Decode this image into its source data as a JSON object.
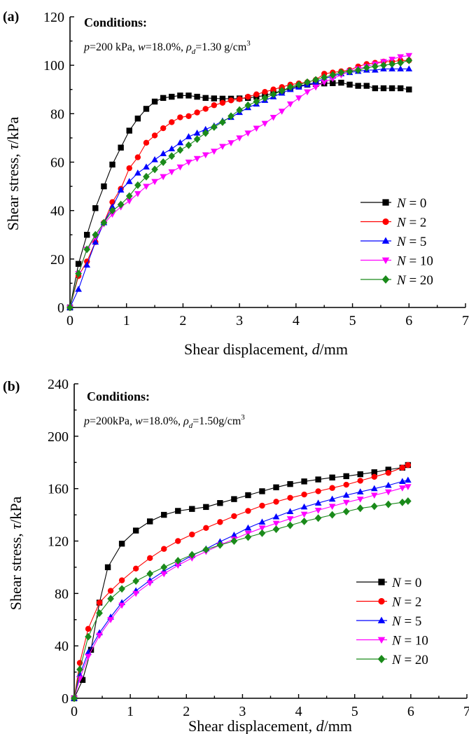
{
  "chart_data": [
    {
      "panel": "(a)",
      "type": "line",
      "xlabel": "Shear displacement, d/mm",
      "ylabel": "Shear stress, τ/kPa",
      "xlim": [
        0,
        7
      ],
      "ylim": [
        0,
        120
      ],
      "xticks": [
        0,
        1,
        2,
        3,
        4,
        5,
        6,
        7
      ],
      "yticks": [
        0,
        20,
        40,
        60,
        80,
        100,
        120
      ],
      "grid": false,
      "legend_position": "center-right",
      "annotation": {
        "title": "Conditions:",
        "line": "p=200 kPa, w=18.0%, ρd=1.30 g/cm3"
      },
      "series": [
        {
          "name": "N = 0",
          "label_var": "N",
          "label_rest": " = 0",
          "color": "#000000",
          "marker": "square",
          "x": [
            0,
            0.15,
            0.3,
            0.45,
            0.6,
            0.75,
            0.9,
            1.05,
            1.2,
            1.35,
            1.5,
            1.65,
            1.8,
            1.95,
            2.1,
            2.25,
            2.4,
            2.55,
            2.7,
            2.85,
            3.0,
            3.15,
            3.3,
            3.45,
            3.6,
            3.75,
            3.9,
            4.05,
            4.2,
            4.35,
            4.5,
            4.65,
            4.8,
            4.95,
            5.1,
            5.25,
            5.4,
            5.55,
            5.7,
            5.85,
            6.0
          ],
          "y": [
            0,
            18,
            30,
            41,
            50,
            59,
            66,
            73,
            78,
            82,
            85,
            86.5,
            87,
            87.5,
            87.5,
            87,
            86.5,
            86.3,
            86.2,
            86.2,
            86.3,
            86.5,
            87,
            87.5,
            88.5,
            89.5,
            90.5,
            91.5,
            92,
            92.3,
            92.5,
            92.6,
            92.8,
            92,
            91.5,
            91.5,
            90.5,
            90.5,
            90.5,
            90.5,
            90
          ]
        },
        {
          "name": "N = 2",
          "label_var": "N",
          "label_rest": " = 2",
          "color": "#ff0000",
          "marker": "circle",
          "x": [
            0,
            0.15,
            0.3,
            0.45,
            0.6,
            0.75,
            0.9,
            1.05,
            1.2,
            1.35,
            1.5,
            1.65,
            1.8,
            1.95,
            2.1,
            2.25,
            2.4,
            2.55,
            2.7,
            2.85,
            3.0,
            3.15,
            3.3,
            3.45,
            3.6,
            3.75,
            3.9,
            4.05,
            4.2,
            4.35,
            4.5,
            4.65,
            4.8,
            4.95,
            5.1,
            5.25,
            5.4,
            5.55,
            5.7,
            5.85,
            6.0
          ],
          "y": [
            0,
            13,
            19,
            27,
            35,
            43.5,
            49,
            57.5,
            62,
            68,
            71,
            74,
            76.5,
            78.5,
            79,
            80.5,
            82,
            83.5,
            84.5,
            85.5,
            86,
            87,
            88,
            89,
            90,
            91,
            92,
            92.5,
            93,
            94,
            96.5,
            97,
            97.5,
            98,
            99.5,
            100.5,
            101,
            101.5,
            101.5,
            102,
            102
          ]
        },
        {
          "name": "N = 5",
          "label_var": "N",
          "label_rest": " = 5",
          "color": "#0000ff",
          "marker": "triangle-up",
          "x": [
            0,
            0.15,
            0.3,
            0.45,
            0.6,
            0.75,
            0.9,
            1.05,
            1.2,
            1.35,
            1.5,
            1.65,
            1.8,
            1.95,
            2.1,
            2.25,
            2.4,
            2.55,
            2.7,
            2.85,
            3.0,
            3.15,
            3.3,
            3.45,
            3.6,
            3.75,
            3.9,
            4.05,
            4.2,
            4.35,
            4.5,
            4.65,
            4.8,
            4.95,
            5.1,
            5.25,
            5.4,
            5.55,
            5.7,
            5.85,
            6.0
          ],
          "y": [
            0,
            7.5,
            17.5,
            27,
            35,
            41.5,
            48.5,
            52,
            55.5,
            58,
            61,
            63.5,
            65.5,
            68,
            70.5,
            72,
            73.5,
            75,
            77,
            78.5,
            80.5,
            82.5,
            84,
            85.5,
            87,
            88.5,
            90,
            91,
            92,
            93,
            94.5,
            95.5,
            96.5,
            97,
            97.5,
            98,
            98,
            98.5,
            98.5,
            98.5,
            98.5
          ]
        },
        {
          "name": "N = 10",
          "label_var": "N",
          "label_rest": " = 10",
          "color": "#ff00ff",
          "marker": "triangle-down",
          "x": [
            0,
            0.15,
            0.3,
            0.45,
            0.6,
            0.75,
            0.9,
            1.05,
            1.2,
            1.35,
            1.5,
            1.65,
            1.8,
            1.95,
            2.1,
            2.25,
            2.4,
            2.55,
            2.7,
            2.85,
            3.0,
            3.15,
            3.3,
            3.45,
            3.6,
            3.75,
            3.9,
            4.05,
            4.2,
            4.35,
            4.5,
            4.65,
            4.8,
            4.95,
            5.1,
            5.25,
            5.4,
            5.55,
            5.7,
            5.85,
            6.0
          ],
          "y": [
            0,
            14,
            24,
            29,
            34.5,
            38.5,
            41.5,
            44,
            47,
            50,
            52,
            54,
            56,
            58,
            60,
            61.5,
            63,
            64.5,
            66.5,
            68,
            70,
            72,
            74,
            76,
            78.5,
            81,
            84,
            86.5,
            89,
            91,
            93,
            94.5,
            96,
            97.5,
            98.5,
            99.5,
            100.5,
            101.5,
            102.5,
            103.5,
            104
          ]
        },
        {
          "name": "N = 20",
          "label_var": "N",
          "label_rest": " = 20",
          "color": "#1a8a1a",
          "marker": "diamond",
          "x": [
            0,
            0.15,
            0.3,
            0.45,
            0.6,
            0.75,
            0.9,
            1.05,
            1.2,
            1.35,
            1.5,
            1.65,
            1.8,
            1.95,
            2.1,
            2.25,
            2.4,
            2.55,
            2.7,
            2.85,
            3.0,
            3.15,
            3.3,
            3.45,
            3.6,
            3.75,
            3.9,
            4.05,
            4.2,
            4.35,
            4.5,
            4.65,
            4.8,
            4.95,
            5.1,
            5.25,
            5.4,
            5.55,
            5.7,
            5.85,
            6.0
          ],
          "y": [
            0,
            14,
            24,
            30,
            35,
            40,
            42.5,
            46,
            50.5,
            54,
            57,
            60,
            62.5,
            65,
            67,
            69.5,
            72,
            74.5,
            76.5,
            79,
            81.5,
            83.5,
            85,
            86.5,
            88,
            89.5,
            91,
            92,
            93,
            94,
            95,
            96,
            97,
            97.5,
            98,
            99,
            99.5,
            100,
            100.5,
            101,
            102
          ]
        }
      ]
    },
    {
      "panel": "(b)",
      "type": "line",
      "xlabel": "Shear displacement, d/mm",
      "ylabel": "Shear stress, τ/kPa",
      "xlim": [
        0,
        7
      ],
      "ylim": [
        0,
        240
      ],
      "xticks": [
        0,
        1,
        2,
        3,
        4,
        5,
        6,
        7
      ],
      "yticks": [
        0,
        40,
        80,
        120,
        160,
        200,
        240
      ],
      "grid": false,
      "legend_position": "bottom-right",
      "annotation": {
        "title": "Conditions:",
        "line": "p=200kPa, w=18.0%, ρd=1.50g/cm3"
      },
      "series": [
        {
          "name": "N = 0",
          "label_var": "N",
          "label_rest": " = 0",
          "color": "#000000",
          "marker": "square",
          "x": [
            0,
            0.15,
            0.3,
            0.45,
            0.6,
            0.85,
            1.1,
            1.35,
            1.6,
            1.85,
            2.1,
            2.35,
            2.6,
            2.85,
            3.1,
            3.35,
            3.6,
            3.85,
            4.1,
            4.35,
            4.6,
            4.85,
            5.1,
            5.35,
            5.6,
            5.85,
            5.95
          ],
          "y": [
            0,
            14,
            37,
            73,
            100,
            118,
            128,
            135,
            140,
            143,
            144.5,
            146,
            149,
            152,
            155,
            158,
            161,
            163.5,
            165.5,
            167,
            168.5,
            169.5,
            171,
            172.5,
            174.5,
            176,
            178
          ]
        },
        {
          "name": "N = 2",
          "label_var": "N",
          "label_rest": " = 2",
          "color": "#ff0000",
          "marker": "circle",
          "x": [
            0,
            0.1,
            0.25,
            0.45,
            0.65,
            0.85,
            1.1,
            1.35,
            1.6,
            1.85,
            2.1,
            2.35,
            2.6,
            2.85,
            3.1,
            3.35,
            3.6,
            3.85,
            4.1,
            4.35,
            4.6,
            4.85,
            5.1,
            5.35,
            5.6,
            5.85,
            5.95
          ],
          "y": [
            0,
            27,
            53,
            73,
            82,
            90,
            99,
            107,
            114,
            120,
            125,
            130,
            134.5,
            139,
            143,
            147,
            150,
            153,
            155.5,
            158,
            160.5,
            163,
            166,
            169,
            172,
            176,
            178
          ]
        },
        {
          "name": "N = 5",
          "label_var": "N",
          "label_rest": " = 5",
          "color": "#0000ff",
          "marker": "triangle-up",
          "x": [
            0,
            0.1,
            0.25,
            0.45,
            0.65,
            0.85,
            1.1,
            1.35,
            1.6,
            1.85,
            2.1,
            2.35,
            2.6,
            2.85,
            3.1,
            3.35,
            3.6,
            3.85,
            4.1,
            4.35,
            4.6,
            4.85,
            5.1,
            5.35,
            5.6,
            5.85,
            5.95
          ],
          "y": [
            0,
            18,
            35,
            50,
            62,
            73,
            82,
            90,
            97,
            103,
            109,
            114,
            119.5,
            124.5,
            130,
            134.5,
            138.5,
            142.5,
            146,
            149,
            152,
            155,
            157.5,
            160,
            162.5,
            165.5,
            166.5
          ]
        },
        {
          "name": "N = 10",
          "label_var": "N",
          "label_rest": " = 10",
          "color": "#ff00ff",
          "marker": "triangle-down",
          "x": [
            0,
            0.1,
            0.25,
            0.45,
            0.65,
            0.85,
            1.1,
            1.35,
            1.6,
            1.85,
            2.1,
            2.35,
            2.6,
            2.85,
            3.1,
            3.35,
            3.6,
            3.85,
            4.1,
            4.35,
            4.6,
            4.85,
            5.1,
            5.35,
            5.6,
            5.85,
            5.95
          ],
          "y": [
            0,
            15,
            32,
            48,
            60,
            71,
            80,
            88,
            95,
            101.5,
            107,
            112,
            117,
            121.5,
            126,
            130,
            133.5,
            137,
            140.5,
            143.5,
            146.5,
            149.5,
            152,
            155,
            157.5,
            160.5,
            161.5
          ]
        },
        {
          "name": "N = 20",
          "label_var": "N",
          "label_rest": " = 20",
          "color": "#1a8a1a",
          "marker": "diamond",
          "x": [
            0,
            0.1,
            0.25,
            0.45,
            0.65,
            0.85,
            1.1,
            1.35,
            1.6,
            1.85,
            2.1,
            2.35,
            2.6,
            2.85,
            3.1,
            3.35,
            3.6,
            3.85,
            4.1,
            4.35,
            4.6,
            4.85,
            5.1,
            5.35,
            5.6,
            5.85,
            5.95
          ],
          "y": [
            0,
            22,
            47,
            65,
            76,
            83.5,
            89.5,
            95,
            100,
            105,
            109.5,
            113.5,
            117,
            120,
            123,
            126,
            129,
            132,
            135,
            137.5,
            140,
            142.5,
            145,
            146.5,
            148,
            149.5,
            150.5
          ]
        }
      ]
    }
  ]
}
